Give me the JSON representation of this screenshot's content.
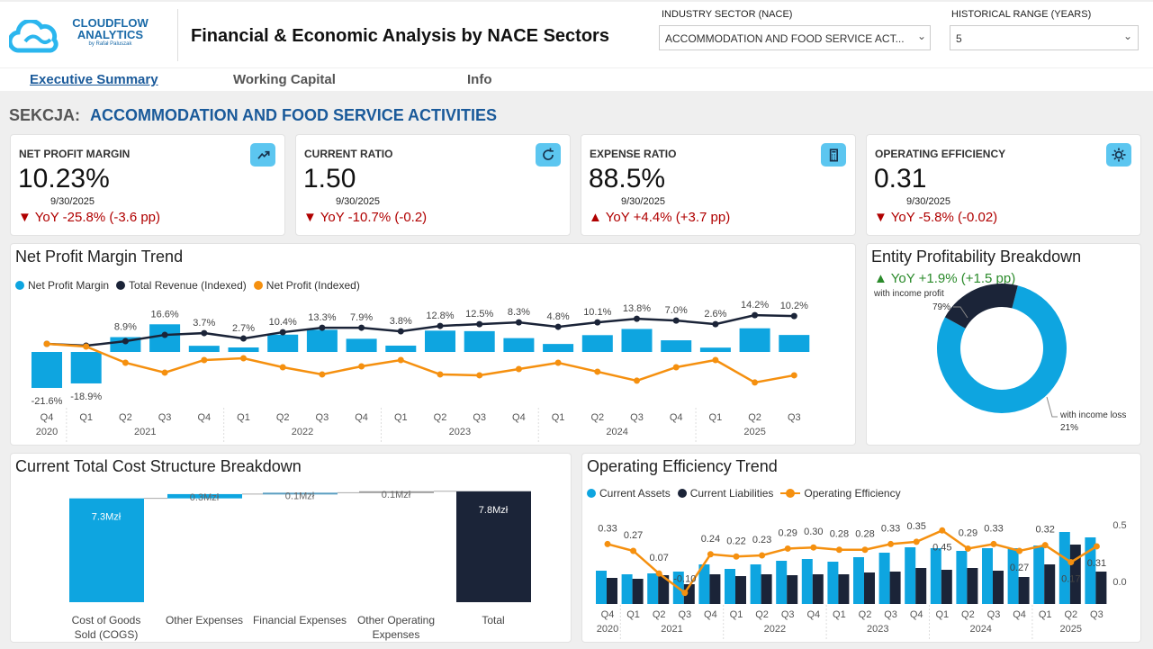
{
  "header": {
    "logo_line1": "CLOUDFLOW",
    "logo_line2": "ANALYTICS",
    "logo_byline": "by Rafał Paluszak",
    "title": "Financial & Economic Analysis by NACE Sectors"
  },
  "filters": {
    "sector_label": "INDUSTRY SECTOR (NACE)",
    "sector_value": "ACCOMMODATION AND FOOD SERVICE ACT...",
    "range_label": "HISTORICAL RANGE (YEARS)",
    "range_value": "5"
  },
  "nav": {
    "tabs": [
      {
        "label": "Executive Summary",
        "active": true
      },
      {
        "label": "Working Capital"
      },
      {
        "label": "Info"
      }
    ]
  },
  "section": {
    "prefix": "SEKCJA:",
    "name": "ACCOMMODATION AND FOOD SERVICE ACTIVITIES"
  },
  "colors": {
    "blue": "#0ea5e0",
    "navy": "#1b2438",
    "orange": "#f5900f",
    "down": "#b00000",
    "up": "#2a8a2a"
  },
  "kpis": [
    {
      "label": "NET PROFIT MARGIN",
      "value": "10.23%",
      "date": "9/30/2025",
      "yoy": "YoY -25.8% (-3.6 pp)",
      "dir": "down",
      "icon": "trend-up-icon"
    },
    {
      "label": "CURRENT RATIO",
      "value": "1.50",
      "date": "9/30/2025",
      "yoy": "YoY -10.7% (-0.2)",
      "dir": "down",
      "icon": "refresh-icon"
    },
    {
      "label": "EXPENSE RATIO",
      "value": "88.5%",
      "date": "9/30/2025",
      "yoy": "YoY +4.4% (+3.7 pp)",
      "dir": "up",
      "icon": "calculator-icon"
    },
    {
      "label": "OPERATING EFFICIENCY",
      "value": "0.31",
      "date": "9/30/2025",
      "yoy": "YoY -5.8% (-0.02)",
      "dir": "down",
      "icon": "gear-icon"
    }
  ],
  "chart_data": [
    {
      "type": "bar",
      "title": "Net Profit Margin Trend",
      "legend": [
        "Net Profit Margin",
        "Total Revenue (Indexed)",
        "Net Profit (Indexed)"
      ],
      "categories": [
        "Q4",
        "Q1",
        "Q2",
        "Q3",
        "Q4",
        "Q1",
        "Q2",
        "Q3",
        "Q4",
        "Q1",
        "Q2",
        "Q3",
        "Q4",
        "Q1",
        "Q2",
        "Q3",
        "Q4",
        "Q1",
        "Q2",
        "Q3"
      ],
      "years": [
        {
          "label": "2020",
          "n": 1
        },
        {
          "label": "2021",
          "n": 4
        },
        {
          "label": "2022",
          "n": 4
        },
        {
          "label": "2023",
          "n": 4
        },
        {
          "label": "2024",
          "n": 4
        },
        {
          "label": "2025",
          "n": 3
        }
      ],
      "series": [
        {
          "name": "Net Profit Margin",
          "unit": "%",
          "values": [
            -21.6,
            -18.9,
            8.9,
            16.6,
            3.7,
            2.7,
            10.4,
            13.3,
            7.9,
            3.8,
            12.8,
            12.5,
            8.3,
            4.8,
            10.1,
            13.8,
            7.0,
            2.6,
            14.2,
            10.2
          ]
        },
        {
          "name": "Total Revenue (Indexed)",
          "values": [
            98,
            84,
            119,
            168,
            182,
            140,
            189,
            224,
            224,
            196,
            238,
            252,
            266,
            231,
            266,
            294,
            280,
            252,
            322,
            315
          ]
        },
        {
          "name": "Net Profit (Indexed)",
          "values": [
            98,
            77,
            -49,
            -126,
            -28,
            -14,
            -84,
            -140,
            -77,
            -28,
            -140,
            -147,
            -98,
            -49,
            -119,
            -189,
            -84,
            -28,
            -203,
            -147
          ]
        }
      ],
      "y2_ticks": [
        400,
        200,
        0,
        -200,
        -400
      ],
      "y2lim": [
        -400,
        400
      ]
    },
    {
      "type": "pie",
      "title": "Entity Profitability Breakdown",
      "yoy": "YoY +1.9% (+1.5 pp)",
      "slices": [
        {
          "label": "with income profit",
          "value": 79,
          "pct": "79%"
        },
        {
          "label": "with income loss",
          "value": 21,
          "pct": "21%"
        }
      ]
    },
    {
      "type": "bar",
      "subtype": "waterfall",
      "title": "Current Total Cost Structure Breakdown",
      "categories": [
        "Cost of Goods Sold (COGS)",
        "Other Expenses",
        "Financial Expenses",
        "Other Operating Expenses",
        "Total"
      ],
      "values": [
        7.3,
        0.3,
        0.1,
        0.1,
        7.8
      ],
      "labels": [
        "7.3Mzł",
        "0.3Mzł",
        "0.1Mzł",
        "0.1Mzł",
        "7.8Mzł"
      ]
    },
    {
      "type": "bar",
      "title": "Operating Efficiency Trend",
      "legend": [
        "Current Assets",
        "Current Liabilities",
        "Operating Efficiency"
      ],
      "categories": [
        "Q4",
        "Q1",
        "Q2",
        "Q3",
        "Q4",
        "Q1",
        "Q2",
        "Q3",
        "Q4",
        "Q1",
        "Q2",
        "Q3",
        "Q4",
        "Q1",
        "Q2",
        "Q3",
        "Q4",
        "Q1",
        "Q2",
        "Q3"
      ],
      "years": [
        {
          "label": "2020",
          "n": 1
        },
        {
          "label": "2021",
          "n": 4
        },
        {
          "label": "2022",
          "n": 4
        },
        {
          "label": "2023",
          "n": 4
        },
        {
          "label": "2024",
          "n": 4
        },
        {
          "label": "2025",
          "n": 3
        }
      ],
      "series": [
        {
          "name": "Current Assets",
          "values": [
            37,
            33,
            34,
            36,
            44,
            39,
            44,
            48,
            50,
            47,
            52,
            57,
            63,
            62,
            59,
            62,
            62,
            65,
            80,
            74
          ]
        },
        {
          "name": "Current Liabilities",
          "values": [
            29,
            28,
            32,
            22,
            33,
            31,
            33,
            32,
            33,
            33,
            35,
            36,
            40,
            38,
            40,
            37,
            30,
            44,
            66,
            36
          ]
        },
        {
          "name": "Operating Efficiency",
          "values": [
            0.33,
            0.27,
            0.07,
            -0.1,
            0.24,
            0.22,
            0.23,
            0.29,
            0.3,
            0.28,
            0.28,
            0.33,
            0.35,
            0.45,
            0.29,
            0.33,
            0.27,
            0.32,
            0.17,
            0.31
          ]
        }
      ],
      "y2_ticks": [
        "0.5",
        "0.0"
      ]
    }
  ]
}
